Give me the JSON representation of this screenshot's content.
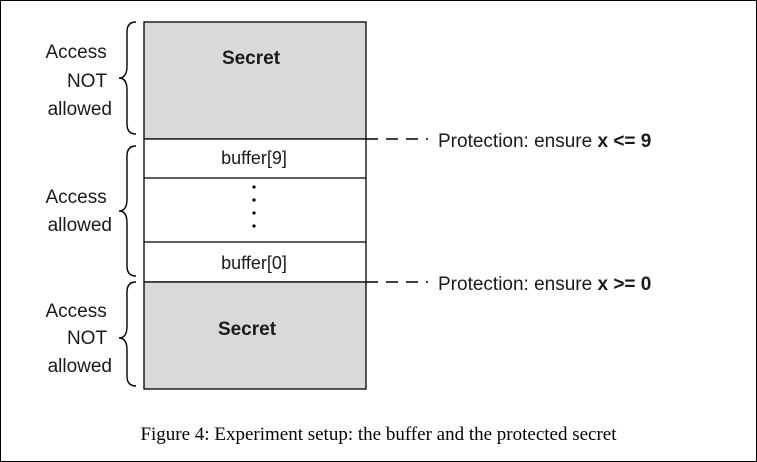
{
  "colors": {
    "secret_fill": "#d9d9d9",
    "buffer_fill": "#ffffff",
    "line": "#000000",
    "text": "#1a1a1a"
  },
  "regions": {
    "top_secret": {
      "label": "Secret"
    },
    "bottom_secret": {
      "label": "Secret"
    },
    "buffer_top": {
      "label": "buffer[9]"
    },
    "buffer_bottom": {
      "label": "buffer[0]"
    }
  },
  "braces": {
    "top": {
      "lines": [
        "Access",
        "NOT",
        "allowed"
      ]
    },
    "middle": {
      "lines": [
        "Access",
        "allowed"
      ]
    },
    "bottom": {
      "lines": [
        "Access",
        "NOT",
        "allowed"
      ]
    }
  },
  "protections": {
    "upper": {
      "prefix": "Protection: ensure ",
      "expr": "x <= 9"
    },
    "lower": {
      "prefix": "Protection: ensure ",
      "expr": "x >= 0"
    }
  },
  "caption": "Figure 4: Experiment setup: the buffer and the protected secret"
}
